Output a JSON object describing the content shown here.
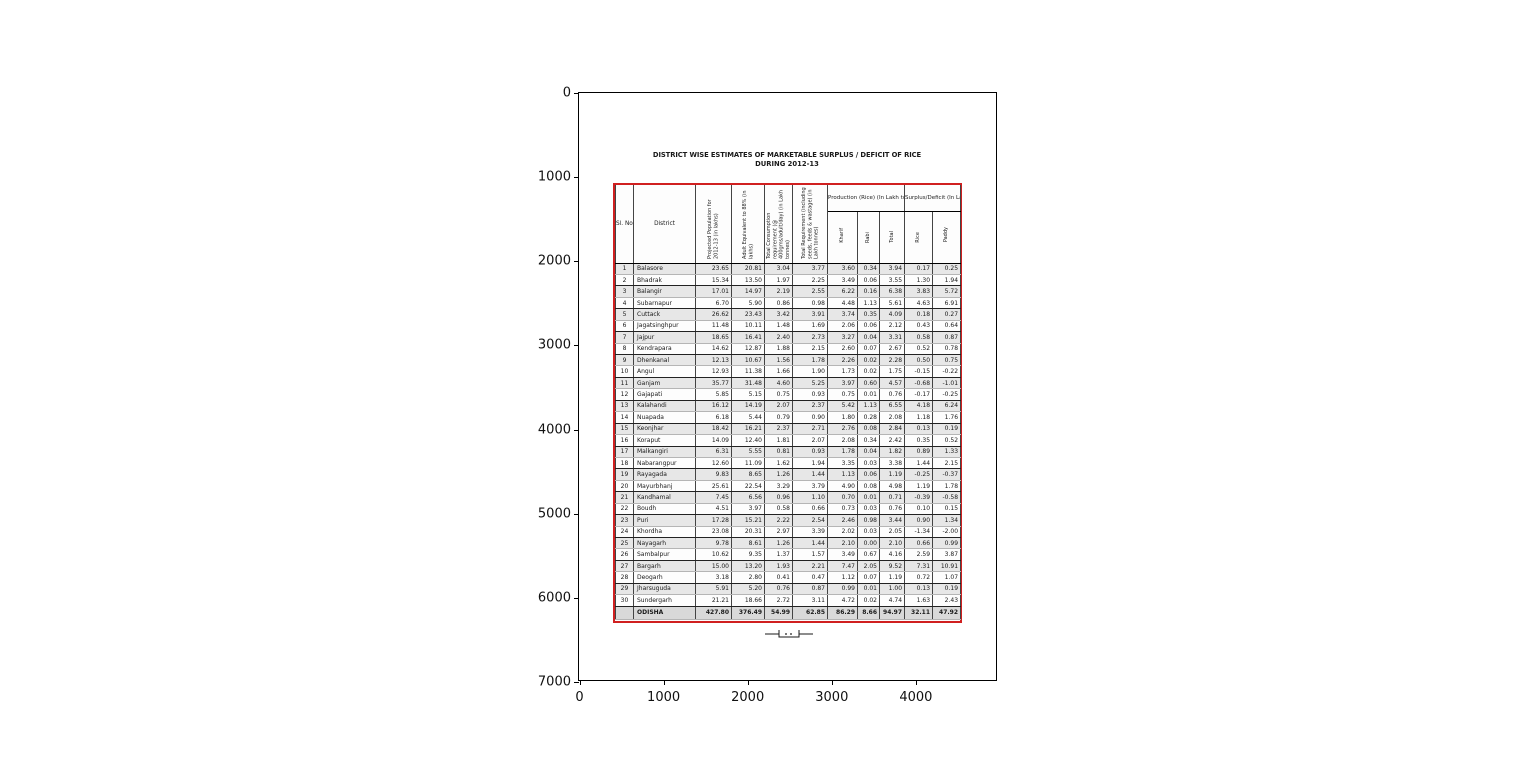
{
  "figure": {
    "title_line1": "DISTRICT WISE ESTIMATES OF MARKETABLE SURPLUS / DEFICIT OF RICE",
    "title_line2": "DURING 2012-13"
  },
  "axes": {
    "y_ticks": [
      "0",
      "1000",
      "2000",
      "3000",
      "4000",
      "5000",
      "6000",
      "7000"
    ],
    "x_ticks": [
      "0",
      "1000",
      "2000",
      "3000",
      "4000"
    ]
  },
  "colors": {
    "table_border_red": "#d02020",
    "row_shade": "#e7e7e7",
    "total_row_bg": "#d9d9d9",
    "axes_frame": "#000000"
  },
  "chart_data": {
    "type": "table",
    "title": "DISTRICT WISE ESTIMATES OF MARKETABLE SURPLUS / DEFICIT OF RICE DURING 2012-13",
    "columns": [
      "Sl. No.",
      "District",
      "Projected Population for 2012-13 (in lakhs)",
      "Adult Equivalent to 88% (in lakhs)",
      "Total Consumption requirement (@ 400gms/adult/day) (in Lakh tonnes)",
      "Total Requirement (including seeds, feeds & wastage) (in Lakh tonnes)",
      "Kharif",
      "Rabi",
      "Total",
      "Rice",
      "Paddy"
    ],
    "column_groups": [
      {
        "label": "Production (Rice) (In Lakh tonnes)",
        "span": [
          "Kharif",
          "Rabi",
          "Total"
        ]
      },
      {
        "label": "Surplus/Deficit (In Lakh tonnes)",
        "span": [
          "Rice",
          "Paddy"
        ]
      }
    ],
    "rows": [
      [
        "1",
        "Balasore",
        "23.65",
        "20.81",
        "3.04",
        "3.77",
        "3.60",
        "0.34",
        "3.94",
        "0.17",
        "0.25"
      ],
      [
        "2",
        "Bhadrak",
        "15.34",
        "13.50",
        "1.97",
        "2.25",
        "3.49",
        "0.06",
        "3.55",
        "1.30",
        "1.94"
      ],
      [
        "3",
        "Balangir",
        "17.01",
        "14.97",
        "2.19",
        "2.55",
        "6.22",
        "0.16",
        "6.38",
        "3.83",
        "5.72"
      ],
      [
        "4",
        "Subarnapur",
        "6.70",
        "5.90",
        "0.86",
        "0.98",
        "4.48",
        "1.13",
        "5.61",
        "4.63",
        "6.91"
      ],
      [
        "5",
        "Cuttack",
        "26.62",
        "23.43",
        "3.42",
        "3.91",
        "3.74",
        "0.35",
        "4.09",
        "0.18",
        "0.27"
      ],
      [
        "6",
        "Jagatsinghpur",
        "11.48",
        "10.11",
        "1.48",
        "1.69",
        "2.06",
        "0.06",
        "2.12",
        "0.43",
        "0.64"
      ],
      [
        "7",
        "Jajpur",
        "18.65",
        "16.41",
        "2.40",
        "2.73",
        "3.27",
        "0.04",
        "3.31",
        "0.58",
        "0.87"
      ],
      [
        "8",
        "Kendrapara",
        "14.62",
        "12.87",
        "1.88",
        "2.15",
        "2.60",
        "0.07",
        "2.67",
        "0.52",
        "0.78"
      ],
      [
        "9",
        "Dhenkanal",
        "12.13",
        "10.67",
        "1.56",
        "1.78",
        "2.26",
        "0.02",
        "2.28",
        "0.50",
        "0.75"
      ],
      [
        "10",
        "Angul",
        "12.93",
        "11.38",
        "1.66",
        "1.90",
        "1.73",
        "0.02",
        "1.75",
        "-0.15",
        "-0.22"
      ],
      [
        "11",
        "Ganjam",
        "35.77",
        "31.48",
        "4.60",
        "5.25",
        "3.97",
        "0.60",
        "4.57",
        "-0.68",
        "-1.01"
      ],
      [
        "12",
        "Gajapati",
        "5.85",
        "5.15",
        "0.75",
        "0.93",
        "0.75",
        "0.01",
        "0.76",
        "-0.17",
        "-0.25"
      ],
      [
        "13",
        "Kalahandi",
        "16.12",
        "14.19",
        "2.07",
        "2.37",
        "5.42",
        "1.13",
        "6.55",
        "4.18",
        "6.24"
      ],
      [
        "14",
        "Nuapada",
        "6.18",
        "5.44",
        "0.79",
        "0.90",
        "1.80",
        "0.28",
        "2.08",
        "1.18",
        "1.76"
      ],
      [
        "15",
        "Keonjhar",
        "18.42",
        "16.21",
        "2.37",
        "2.71",
        "2.76",
        "0.08",
        "2.84",
        "0.13",
        "0.19"
      ],
      [
        "16",
        "Koraput",
        "14.09",
        "12.40",
        "1.81",
        "2.07",
        "2.08",
        "0.34",
        "2.42",
        "0.35",
        "0.52"
      ],
      [
        "17",
        "Malkangiri",
        "6.31",
        "5.55",
        "0.81",
        "0.93",
        "1.78",
        "0.04",
        "1.82",
        "0.89",
        "1.33"
      ],
      [
        "18",
        "Nabarangpur",
        "12.60",
        "11.09",
        "1.62",
        "1.94",
        "3.35",
        "0.03",
        "3.38",
        "1.44",
        "2.15"
      ],
      [
        "19",
        "Rayagada",
        "9.83",
        "8.65",
        "1.26",
        "1.44",
        "1.13",
        "0.06",
        "1.19",
        "-0.25",
        "-0.37"
      ],
      [
        "20",
        "Mayurbhanj",
        "25.61",
        "22.54",
        "3.29",
        "3.79",
        "4.90",
        "0.08",
        "4.98",
        "1.19",
        "1.78"
      ],
      [
        "21",
        "Kandhamal",
        "7.45",
        "6.56",
        "0.96",
        "1.10",
        "0.70",
        "0.01",
        "0.71",
        "-0.39",
        "-0.58"
      ],
      [
        "22",
        "Boudh",
        "4.51",
        "3.97",
        "0.58",
        "0.66",
        "0.73",
        "0.03",
        "0.76",
        "0.10",
        "0.15"
      ],
      [
        "23",
        "Puri",
        "17.28",
        "15.21",
        "2.22",
        "2.54",
        "2.46",
        "0.98",
        "3.44",
        "0.90",
        "1.34"
      ],
      [
        "24",
        "Khordha",
        "23.08",
        "20.31",
        "2.97",
        "3.39",
        "2.02",
        "0.03",
        "2.05",
        "-1.34",
        "-2.00"
      ],
      [
        "25",
        "Nayagarh",
        "9.78",
        "8.61",
        "1.26",
        "1.44",
        "2.10",
        "0.00",
        "2.10",
        "0.66",
        "0.99"
      ],
      [
        "26",
        "Sambalpur",
        "10.62",
        "9.35",
        "1.37",
        "1.57",
        "3.49",
        "0.67",
        "4.16",
        "2.59",
        "3.87"
      ],
      [
        "27",
        "Bargarh",
        "15.00",
        "13.20",
        "1.93",
        "2.21",
        "7.47",
        "2.05",
        "9.52",
        "7.31",
        "10.91"
      ],
      [
        "28",
        "Deogarh",
        "3.18",
        "2.80",
        "0.41",
        "0.47",
        "1.12",
        "0.07",
        "1.19",
        "0.72",
        "1.07"
      ],
      [
        "29",
        "Jharsuguda",
        "5.91",
        "5.20",
        "0.76",
        "0.87",
        "0.99",
        "0.01",
        "1.00",
        "0.13",
        "0.19"
      ],
      [
        "30",
        "Sundergarh",
        "21.21",
        "18.66",
        "2.72",
        "3.11",
        "4.72",
        "0.02",
        "4.74",
        "1.63",
        "2.43"
      ]
    ],
    "total_row": [
      "",
      "ODISHA",
      "427.80",
      "376.49",
      "54.99",
      "62.85",
      "86.29",
      "8.66",
      "94.97",
      "32.11",
      "47.92"
    ]
  }
}
